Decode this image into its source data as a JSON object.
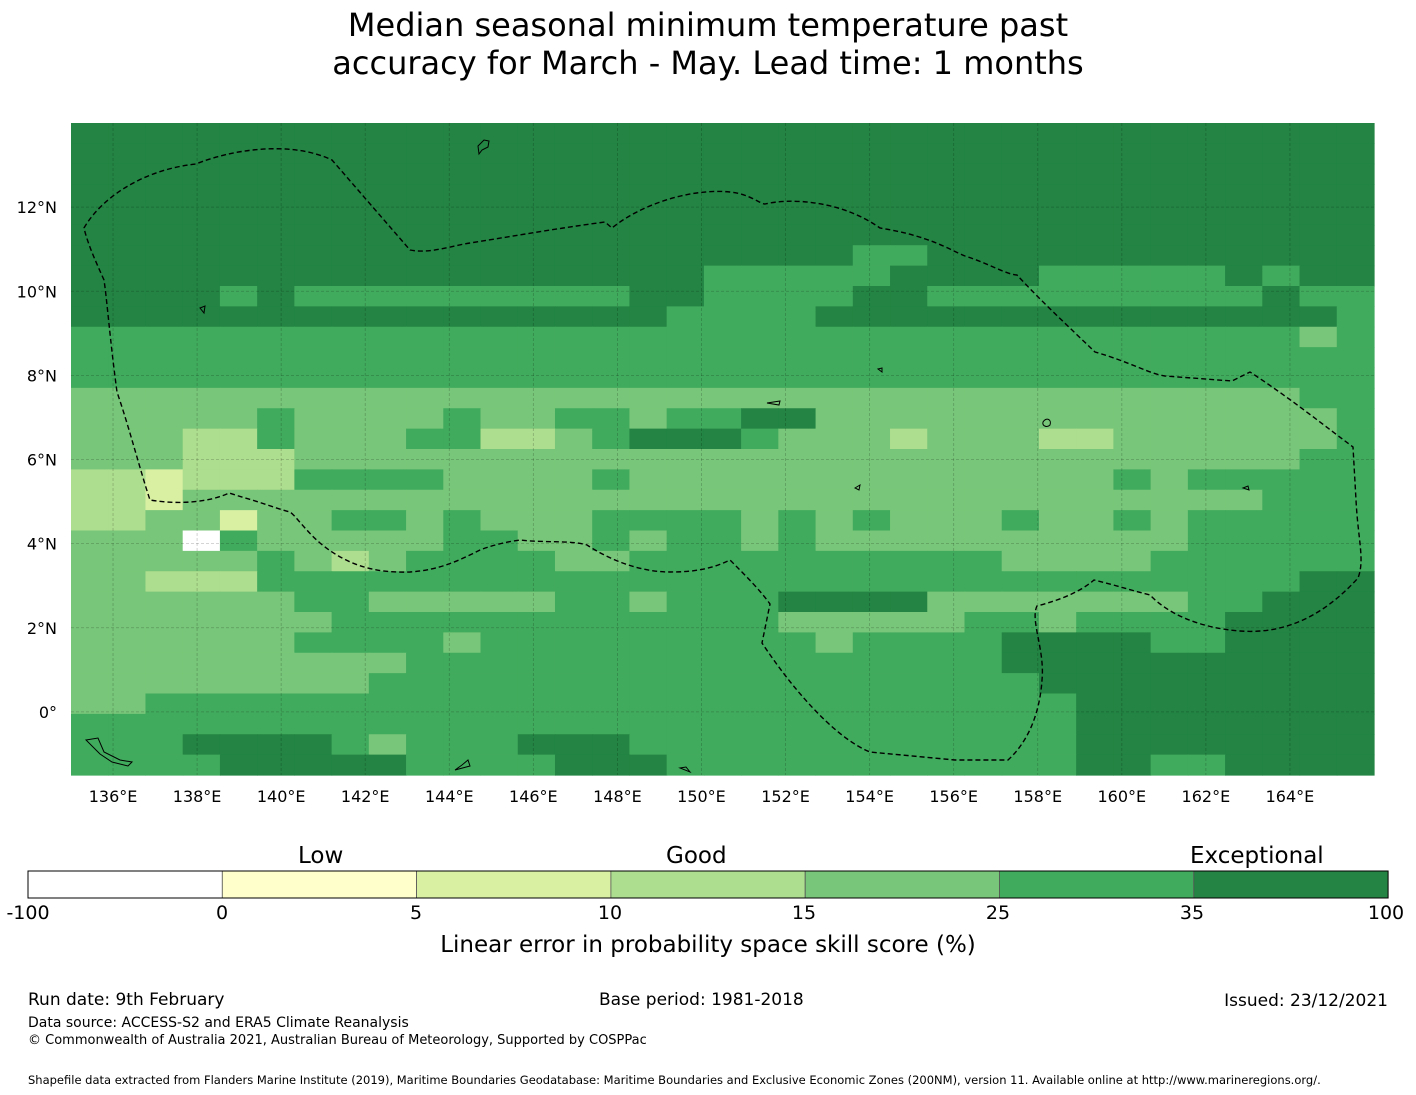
{
  "title_lines": [
    "Median seasonal minimum temperature past",
    "accuracy for March - May. Lead time: 1 months"
  ],
  "map": {
    "lon_labels": [
      "136°E",
      "138°E",
      "140°E",
      "142°E",
      "144°E",
      "146°E",
      "148°E",
      "150°E",
      "152°E",
      "154°E",
      "156°E",
      "158°E",
      "160°E",
      "162°E",
      "164°E"
    ],
    "lat_labels": [
      "12°N",
      "10°N",
      "8°N",
      "6°N",
      "4°N",
      "2°N",
      "0°"
    ],
    "lon_range": [
      135.0,
      166.0
    ],
    "lat_range": [
      -1.5,
      14.0
    ],
    "grid_rows": [
      "66666666666666666666666666666666666",
      "66666666666666666666666666666666666",
      "66666666666666666666666666666666666",
      "66666666666666666666666666666666666",
      "66666666666666666666666666666666666",
      "66666666666666666666666666666666666",
      "66666666666666666666655666666666666",
      "66666666666666666555556666555556566",
      "66665655555555566555566555555555655",
      "66666666666666665555666666666666665",
      "55555555555555555555555555555555545",
      "55555555555555555555555555555555555",
      "55555555555555555555555555555555555",
      "44444444444444444444444444444444455",
      "44444544445445545566444444444444445",
      "44433544455334566654443444334444445",
      "44433344444444444444444444444444455",
      "33233355554444544444444444445455555",
      "33244444444444444444444444444444555",
      "33442445545444555545454445445455555",
      "44405444445544545545444444444455555",
      "44444543455554455555555554444555555",
      "44333555555555555555555555555555566",
      "44444455444445545556666444444455666",
      "44444445555555555554444455455556666",
      "44444455554555555555455556666556666",
      "44444444455555555555555556666666666",
      "44444444555555555555555555666666666",
      "44555555555555555555555555566666666",
      "55555555555555555555555555566666666",
      "55566665455566655555555555566666666",
      "55556666655556665555555555566556666"
    ]
  },
  "legend": {
    "qualitative": [
      "Low",
      "Good",
      "Exceptional"
    ],
    "bins": [
      {
        "from": -100,
        "to": 0,
        "color": "#ffffff"
      },
      {
        "from": 0,
        "to": 5,
        "color": "#ffffcc"
      },
      {
        "from": 5,
        "to": 10,
        "color": "#d9f0a3"
      },
      {
        "from": 10,
        "to": 15,
        "color": "#addd8e"
      },
      {
        "from": 15,
        "to": 25,
        "color": "#78c679"
      },
      {
        "from": 25,
        "to": 35,
        "color": "#41ab5d"
      },
      {
        "from": 35,
        "to": 100,
        "color": "#238443"
      }
    ],
    "tick_labels": [
      "-100",
      "0",
      "5",
      "10",
      "15",
      "25",
      "35",
      "100"
    ],
    "axis_label": "Linear error in probability space skill score (%)"
  },
  "footer": {
    "run_date": "Run date: 9th February",
    "base_period": "Base period: 1981-2018",
    "issued": "Issued: 23/12/2021",
    "data_source": "Data source: ACCESS-S2 and ERA5 Climate Reanalysis",
    "copyright": "© Commonwealth of Australia 2021, Australian Bureau of Meteorology, Supported by COSPPac",
    "shapefile": "Shapefile data extracted from Flanders Marine Institute (2019), Maritime Boundaries Geodatabase: Maritime Boundaries and Exclusive Economic Zones (200NM), version 11. Available online at http://www.marineregions.org/."
  }
}
